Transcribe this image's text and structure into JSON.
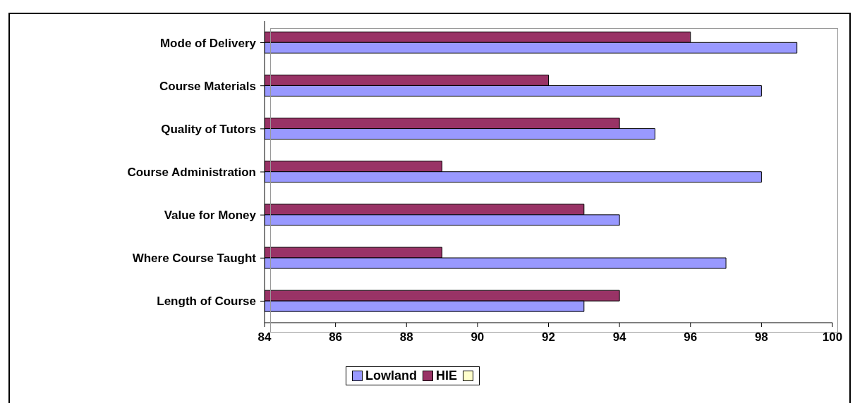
{
  "chart_data": {
    "type": "bar",
    "orientation": "horizontal",
    "categories": [
      "Mode of Delivery",
      "Course Materials",
      "Quality of Tutors",
      "Course Administration",
      "Value for Money",
      "Where Course Taught",
      "Length of Course"
    ],
    "series": [
      {
        "name": "Lowland",
        "color": "#9999ff",
        "values": [
          99,
          98,
          95,
          98,
          94,
          97,
          93
        ]
      },
      {
        "name": "HIE",
        "color": "#993366",
        "values": [
          96,
          92,
          94,
          89,
          93,
          89,
          94
        ]
      },
      {
        "color": "#ffffcc",
        "values": [
          null,
          null,
          null,
          null,
          null,
          null,
          null
        ]
      }
    ],
    "xlim": [
      84,
      100
    ],
    "xticks": [
      84,
      86,
      88,
      90,
      92,
      94,
      96,
      98,
      100
    ],
    "grid": false,
    "legend": "bottom"
  }
}
